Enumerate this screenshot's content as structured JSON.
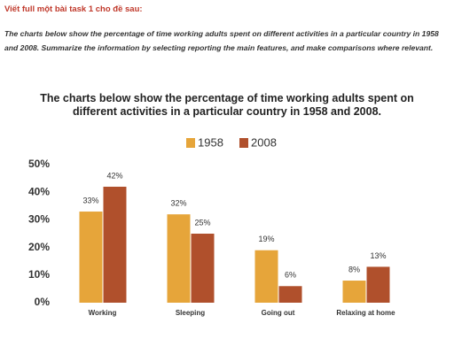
{
  "header": {
    "title": "Viết full một bài task 1 cho đề sau:",
    "prompt": "The charts below show the percentage of time working adults spent on different activities in a particular country in 1958 and 2008. Summarize the information by selecting reporting the main features, and make comparisons where relevant."
  },
  "chart_data": {
    "type": "bar",
    "title": "The charts below show the percentage of time working adults spent on different activities in a particular country in 1958 and 2008.",
    "categories": [
      "Working",
      "Sleeping",
      "Going out",
      "Relaxing at home"
    ],
    "series": [
      {
        "name": "1958",
        "color": "#e6a53a",
        "values": [
          33,
          32,
          19,
          8
        ],
        "value_labels": [
          "33%",
          "32%",
          "19%",
          "8%"
        ]
      },
      {
        "name": "2008",
        "color": "#b0502c",
        "values": [
          42,
          25,
          6,
          13
        ],
        "value_labels": [
          "42%",
          "25%",
          "6%",
          "13%"
        ]
      }
    ],
    "ylim": [
      0,
      50
    ],
    "yticks": [
      {
        "value": 0,
        "label": "0%"
      },
      {
        "value": 10,
        "label": "10%"
      },
      {
        "value": 20,
        "label": "20%"
      },
      {
        "value": 30,
        "label": "30%"
      },
      {
        "value": 40,
        "label": "40%"
      },
      {
        "value": 50,
        "label": "50%"
      }
    ],
    "grid": false
  }
}
